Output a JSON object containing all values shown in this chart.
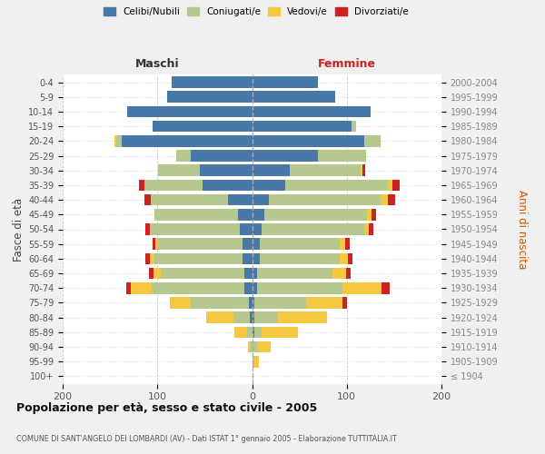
{
  "age_groups": [
    "100+",
    "95-99",
    "90-94",
    "85-89",
    "80-84",
    "75-79",
    "70-74",
    "65-69",
    "60-64",
    "55-59",
    "50-54",
    "45-49",
    "40-44",
    "35-39",
    "30-34",
    "25-29",
    "20-24",
    "15-19",
    "10-14",
    "5-9",
    "0-4"
  ],
  "birth_years": [
    "≤ 1904",
    "1905-1909",
    "1910-1914",
    "1915-1919",
    "1920-1924",
    "1925-1929",
    "1930-1934",
    "1935-1939",
    "1940-1944",
    "1945-1949",
    "1950-1954",
    "1955-1959",
    "1960-1964",
    "1965-1969",
    "1970-1974",
    "1975-1979",
    "1980-1984",
    "1985-1989",
    "1990-1994",
    "1995-1999",
    "2000-2004"
  ],
  "colors": {
    "celibi": "#4878a8",
    "coniugati": "#b5c98e",
    "vedovi": "#f5c842",
    "divorziati": "#cc2222"
  },
  "males": {
    "celibi": [
      0,
      0,
      0,
      0,
      2,
      3,
      8,
      8,
      10,
      10,
      13,
      15,
      25,
      52,
      55,
      65,
      138,
      105,
      132,
      90,
      85
    ],
    "coniugati": [
      0,
      0,
      2,
      5,
      18,
      62,
      98,
      88,
      93,
      90,
      95,
      88,
      82,
      62,
      44,
      15,
      5,
      0,
      0,
      0,
      0
    ],
    "vedovi": [
      0,
      0,
      2,
      14,
      28,
      22,
      22,
      8,
      5,
      2,
      0,
      0,
      0,
      0,
      0,
      0,
      2,
      0,
      0,
      0,
      0
    ],
    "divorziati": [
      0,
      0,
      0,
      0,
      0,
      0,
      5,
      5,
      5,
      3,
      5,
      0,
      7,
      5,
      0,
      0,
      0,
      0,
      0,
      0,
      0
    ]
  },
  "females": {
    "celibi": [
      0,
      0,
      0,
      2,
      2,
      2,
      5,
      5,
      8,
      8,
      10,
      13,
      18,
      35,
      40,
      70,
      118,
      105,
      125,
      88,
      70
    ],
    "coniugati": [
      0,
      2,
      5,
      8,
      25,
      55,
      90,
      80,
      85,
      85,
      108,
      108,
      118,
      108,
      75,
      50,
      18,
      5,
      0,
      0,
      0
    ],
    "vedovi": [
      0,
      5,
      15,
      38,
      52,
      38,
      42,
      14,
      8,
      5,
      5,
      5,
      7,
      5,
      2,
      0,
      0,
      0,
      0,
      0,
      0
    ],
    "divorziati": [
      0,
      0,
      0,
      0,
      0,
      5,
      8,
      5,
      5,
      5,
      5,
      5,
      8,
      8,
      2,
      0,
      0,
      0,
      0,
      0,
      0
    ]
  },
  "title": "Popolazione per età, sesso e stato civile - 2005",
  "subtitle": "COMUNE DI SANT'ANGELO DEI LOMBARDI (AV) - Dati ISTAT 1° gennaio 2005 - Elaborazione TUTTITALIA.IT",
  "xlabel_left": "Maschi",
  "xlabel_right": "Femmine",
  "ylabel_left": "Fasce di età",
  "ylabel_right": "Anni di nascita",
  "xlim": 200,
  "legend_labels": [
    "Celibi/Nubili",
    "Coniugati/e",
    "Vedovi/e",
    "Divorziati/e"
  ],
  "bg_color": "#f0f0f0",
  "bar_bg_color": "#ffffff"
}
